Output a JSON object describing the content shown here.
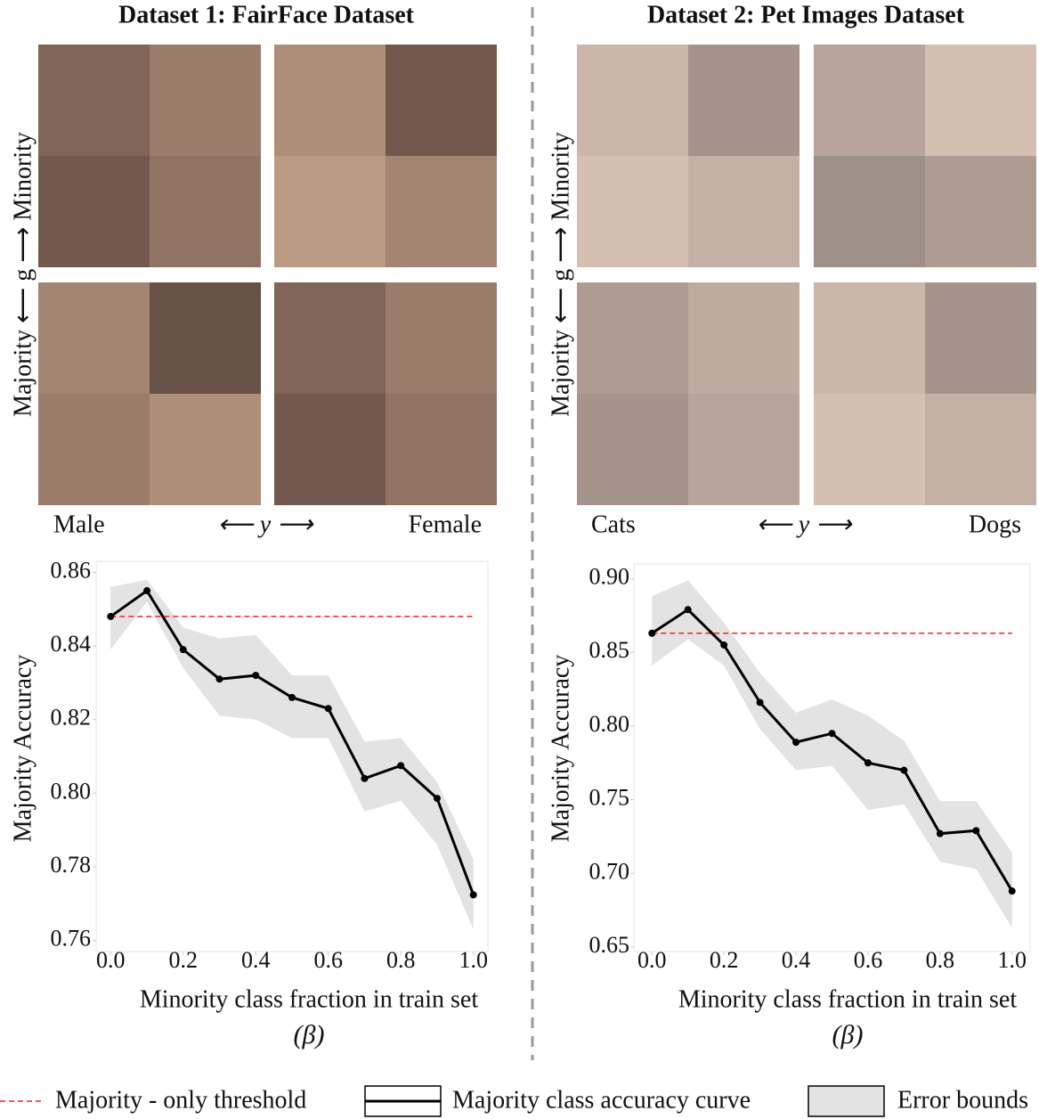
{
  "chart_data": [
    {
      "type": "line",
      "title": "Dataset 1: FairFace Dataset",
      "image_labels": {
        "left": "Male",
        "middle": "⟵ y ⟶",
        "right": "Female",
        "vertical": "Majority ⟵ g ⟶ Minority"
      },
      "x_label": "Minority class fraction in train set",
      "x_label_symbol": "(β)",
      "y_label": "Majority Accuracy",
      "x": [
        0,
        0.1,
        0.2,
        0.3,
        0.4,
        0.5,
        0.6,
        0.7,
        0.8,
        0.9,
        1.0
      ],
      "series": [
        {
          "name": "Majority class accuracy curve",
          "color": "#000000",
          "values": [
            0.848,
            0.855,
            0.839,
            0.831,
            0.832,
            0.826,
            0.823,
            0.804,
            0.8075,
            0.7986,
            0.7724
          ]
        }
      ],
      "band": {
        "name": "Error bounds",
        "color": "#e3e3e3",
        "upper": [
          0.856,
          0.858,
          0.845,
          0.842,
          0.843,
          0.832,
          0.832,
          0.814,
          0.815,
          0.803,
          0.782
        ],
        "lower": [
          0.839,
          0.852,
          0.834,
          0.821,
          0.82,
          0.815,
          0.815,
          0.795,
          0.798,
          0.786,
          0.763
        ]
      },
      "threshold": {
        "name": "Majority - only threshold",
        "value": 0.848,
        "color": "#e8271f"
      },
      "xlim": [
        -0.04,
        1.04
      ],
      "xticks": [
        {
          "value": 0,
          "label": "0.0"
        },
        {
          "value": 0.2,
          "label": "0.2"
        },
        {
          "value": 0.4,
          "label": "0.4"
        },
        {
          "value": 0.6,
          "label": "0.6"
        },
        {
          "value": 0.8,
          "label": "0.8"
        },
        {
          "value": 1.0,
          "label": "1.0"
        }
      ],
      "ylim": [
        0.757,
        0.863
      ],
      "yticks": [
        {
          "value": 0.76,
          "label": "0.76"
        },
        {
          "value": 0.78,
          "label": "0.78"
        },
        {
          "value": 0.8,
          "label": "0.80"
        },
        {
          "value": 0.82,
          "label": "0.82"
        },
        {
          "value": 0.84,
          "label": "0.84"
        },
        {
          "value": 0.86,
          "label": "0.86"
        }
      ]
    },
    {
      "type": "line",
      "title": "Dataset 2: Pet Images Dataset",
      "image_labels": {
        "left": "Cats",
        "middle": "⟵ y ⟶",
        "right": "Dogs",
        "vertical": "Majority ⟵ g ⟶ Minority"
      },
      "x_label": "Minority class fraction in train set",
      "x_label_symbol": "(β)",
      "y_label": "Majority Accuracy",
      "x": [
        0,
        0.1,
        0.2,
        0.3,
        0.4,
        0.5,
        0.6,
        0.7,
        0.8,
        0.9,
        1.0
      ],
      "series": [
        {
          "color": "#000000",
          "values": [
            0.863,
            0.879,
            0.855,
            0.816,
            0.789,
            0.795,
            0.775,
            0.77,
            0.727,
            0.729,
            0.688
          ]
        }
      ],
      "band": {
        "color": "#e3e3e3",
        "upper": [
          0.888,
          0.899,
          0.87,
          0.836,
          0.809,
          0.818,
          0.807,
          0.79,
          0.749,
          0.749,
          0.714
        ],
        "lower": [
          0.841,
          0.859,
          0.841,
          0.798,
          0.77,
          0.773,
          0.743,
          0.747,
          0.708,
          0.703,
          0.663
        ]
      },
      "threshold": {
        "value": 0.863,
        "color": "#e8271f"
      },
      "xlim": [
        -0.05,
        1.05
      ],
      "xticks": [
        {
          "value": 0,
          "label": "0.0"
        },
        {
          "value": 0.2,
          "label": "0.2"
        },
        {
          "value": 0.4,
          "label": "0.4"
        },
        {
          "value": 0.6,
          "label": "0.6"
        },
        {
          "value": 0.8,
          "label": "0.8"
        },
        {
          "value": 1.0,
          "label": "1.0"
        }
      ],
      "ylim": [
        0.647,
        0.91
      ],
      "yticks": [
        {
          "value": 0.65,
          "label": "0.65"
        },
        {
          "value": 0.7,
          "label": "0.70"
        },
        {
          "value": 0.75,
          "label": "0.75"
        },
        {
          "value": 0.8,
          "label": "0.80"
        },
        {
          "value": 0.85,
          "label": "0.85"
        },
        {
          "value": 0.9,
          "label": "0.90"
        }
      ]
    }
  ]
}
